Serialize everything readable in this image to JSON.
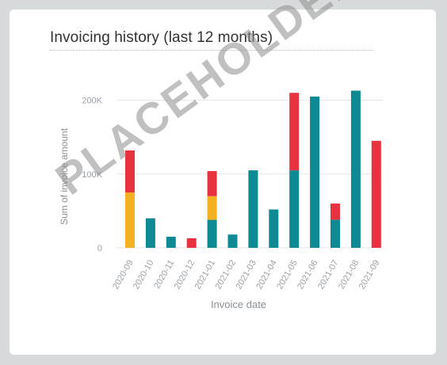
{
  "chart_data": {
    "type": "bar",
    "stacked": true,
    "title": "Invoicing history (last 12 months)",
    "xlabel": "Invoice date",
    "ylabel": "Sum of invoice amount",
    "ylim": [
      0,
      250000
    ],
    "yticks": [
      0,
      100000,
      200000
    ],
    "ytick_labels": [
      "0",
      "100K",
      "200K"
    ],
    "grid": true,
    "categories": [
      "2020-09",
      "2020-10",
      "2020-11",
      "2020-12",
      "2021-01",
      "2021-02",
      "2021-03",
      "2021-04",
      "2021-05",
      "2021-06",
      "2021-07",
      "2021-08",
      "2021-09"
    ],
    "series": [
      {
        "color": "#0e8a95",
        "values": [
          0,
          40000,
          15000,
          0,
          38000,
          18000,
          105000,
          52000,
          105000,
          205000,
          38000,
          213000,
          0
        ]
      },
      {
        "color": "#f3b020",
        "values": [
          75000,
          0,
          0,
          0,
          32000,
          0,
          0,
          0,
          0,
          0,
          0,
          0,
          0
        ]
      },
      {
        "color": "#e8323f",
        "values": [
          57000,
          0,
          0,
          13000,
          34000,
          0,
          0,
          0,
          105000,
          0,
          22000,
          0,
          145000
        ]
      }
    ]
  },
  "watermark": "PLACEHOLDER"
}
